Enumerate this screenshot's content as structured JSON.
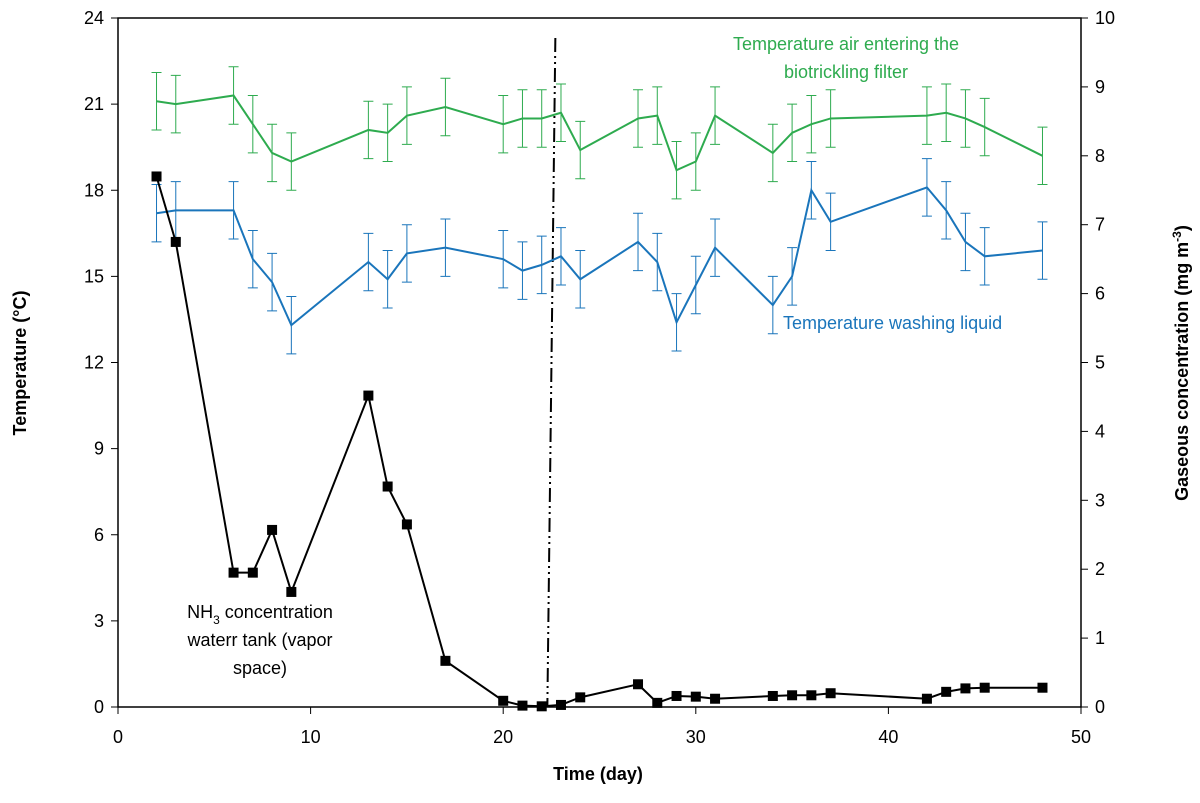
{
  "chart_data": {
    "type": "line",
    "xlabel": "Time (day)",
    "ylabel": "Temperature (°C)",
    "y2label_parts": [
      "Gaseous concentration  (mg m",
      "-3",
      ")"
    ],
    "xlim": [
      0,
      50
    ],
    "xticks": [
      0,
      10,
      20,
      30,
      40,
      50
    ],
    "ylim": [
      0,
      24
    ],
    "yticks": [
      0,
      3,
      6,
      9,
      12,
      15,
      18,
      21,
      24
    ],
    "y2lim": [
      0,
      10
    ],
    "y2ticks": [
      0,
      1,
      2,
      3,
      4,
      5,
      6,
      7,
      8,
      9,
      10
    ],
    "vline": 22.5,
    "series": [
      {
        "name": "Temperature air entering the biotrickling filter",
        "color": "#2eab4f",
        "markers": false,
        "label_lines": [
          "Temperature air entering the",
          "biotrickling filter"
        ],
        "x": [
          2,
          3,
          6,
          7,
          8,
          9,
          13,
          14,
          15,
          17,
          20,
          21,
          22,
          23,
          24,
          27,
          28,
          29,
          30,
          31,
          34,
          35,
          36,
          37,
          42,
          43,
          44,
          45,
          48
        ],
        "values": [
          21.1,
          21.0,
          21.3,
          20.3,
          19.3,
          19.0,
          20.1,
          20.0,
          20.6,
          20.9,
          20.3,
          20.5,
          20.5,
          20.7,
          19.4,
          20.5,
          20.6,
          18.7,
          19.0,
          20.6,
          19.3,
          20.0,
          20.3,
          20.5,
          20.6,
          20.7,
          20.5,
          20.2,
          19.2
        ],
        "errors": [
          1,
          1,
          1,
          1,
          1,
          1,
          1,
          1,
          1,
          1,
          1,
          1,
          1,
          1,
          1,
          1,
          1,
          1,
          1,
          1,
          1,
          1,
          1,
          1,
          1,
          1,
          1,
          1,
          1
        ]
      },
      {
        "name": "Temperature washing liquid",
        "color": "#1a75bb",
        "markers": false,
        "label_lines": [
          "Temperature washing liquid"
        ],
        "x": [
          2,
          3,
          6,
          7,
          8,
          9,
          13,
          14,
          15,
          17,
          20,
          21,
          22,
          23,
          24,
          27,
          28,
          29,
          30,
          31,
          34,
          35,
          36,
          37,
          42,
          43,
          44,
          45,
          48
        ],
        "values": [
          17.2,
          17.3,
          17.3,
          15.6,
          14.8,
          13.3,
          15.5,
          14.9,
          15.8,
          16.0,
          15.6,
          15.2,
          15.4,
          15.7,
          14.9,
          16.2,
          15.5,
          13.4,
          14.7,
          16.0,
          14.0,
          15.0,
          18.0,
          16.9,
          18.1,
          17.3,
          16.2,
          15.7,
          15.9
        ],
        "errors": [
          1,
          1,
          1,
          1,
          1,
          1,
          1,
          1,
          1,
          1,
          1,
          1,
          1,
          1,
          1,
          1,
          1,
          1,
          1,
          1,
          1,
          1,
          1,
          1,
          1,
          1,
          1,
          1,
          1
        ]
      },
      {
        "name": "NH3 concentration waterr tank (vapor space)",
        "color": "#000000",
        "markers": true,
        "axis": "y2",
        "label_parts": [
          "NH",
          "3",
          " concentration"
        ],
        "label_lines": [
          "waterr tank (vapor",
          "space)"
        ],
        "x": [
          2,
          3,
          6,
          7,
          8,
          9,
          13,
          14,
          15,
          17,
          20,
          21,
          22,
          23,
          24,
          27,
          28,
          29,
          30,
          31,
          34,
          35,
          36,
          37,
          42,
          43,
          44,
          45,
          48
        ],
        "values": [
          7.7,
          6.75,
          1.95,
          1.95,
          2.57,
          1.67,
          4.52,
          3.2,
          2.65,
          0.67,
          0.09,
          0.02,
          0.01,
          0.03,
          0.14,
          0.33,
          0.06,
          0.16,
          0.15,
          0.12,
          0.16,
          0.17,
          0.17,
          0.2,
          0.12,
          0.22,
          0.27,
          0.28,
          0.28
        ]
      }
    ]
  }
}
